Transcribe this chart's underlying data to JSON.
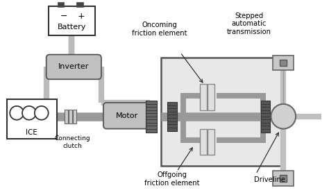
{
  "bg_color": "#ffffff",
  "tr_bg": "#e8e8e8",
  "shaft_color": "#999999",
  "wire_color": "#aaaaaa",
  "box_dark": "#888888",
  "box_light": "#cccccc",
  "gear_dark": "#555555",
  "gear_light": "#777777",
  "labels": {
    "battery": "Battery",
    "inverter": "Inverter",
    "motor": "Motor",
    "ice": "ICE",
    "connecting_clutch": "Connecting\nclutch",
    "oncoming": "Oncoming\nfriction element",
    "offgoing": "Offgoing\nfriction element",
    "stepped": "Stepped\nautomatic\ntransmission",
    "driveline": "Driveline"
  }
}
